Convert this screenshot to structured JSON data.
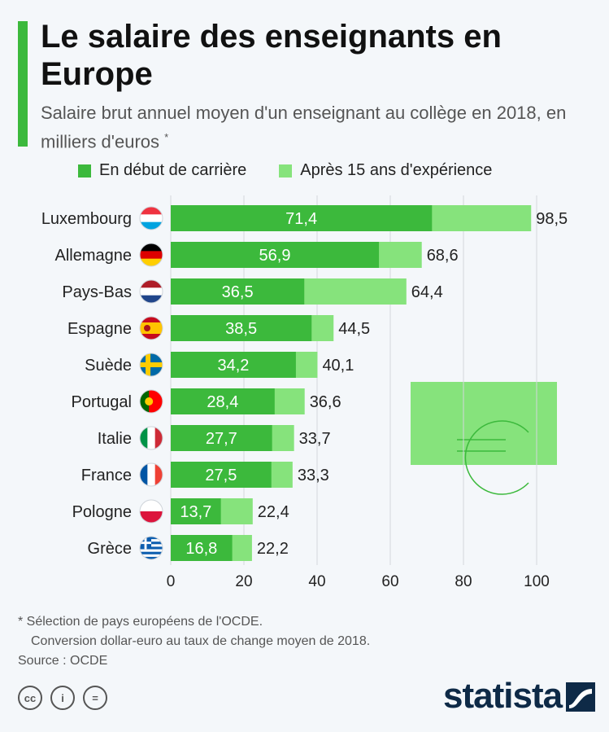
{
  "title": "Le salaire des enseignants en Europe",
  "subtitle": "Salaire brut annuel moyen d'un enseignant au collège en 2018, en milliers d'euros",
  "subtitle_mark": "*",
  "legend": [
    "En début de carrière",
    "Après 15 ans d'expérience"
  ],
  "colors": {
    "start": "#3cb93c",
    "after": "#86e37c",
    "accent": "#3cb93c",
    "brand": "#0e2a47"
  },
  "chart_data": {
    "type": "bar",
    "orientation": "horizontal",
    "categories": [
      "Luxembourg",
      "Allemagne",
      "Pays-Bas",
      "Espagne",
      "Suède",
      "Portugal",
      "Italie",
      "France",
      "Pologne",
      "Grèce"
    ],
    "series": [
      {
        "name": "En début de carrière",
        "values": [
          71.4,
          56.9,
          36.5,
          38.5,
          34.2,
          28.4,
          27.7,
          27.5,
          13.7,
          16.8
        ]
      },
      {
        "name": "Après 15 ans d'expérience",
        "values": [
          98.5,
          68.6,
          64.4,
          44.5,
          40.1,
          36.6,
          33.7,
          33.3,
          22.4,
          22.2
        ]
      }
    ],
    "start_labels": [
      "71,4",
      "56,9",
      "36,5",
      "38,5",
      "34,2",
      "28,4",
      "27,7",
      "27,5",
      "13,7",
      "16,8"
    ],
    "end_labels": [
      "98,5",
      "68,6",
      "64,4",
      "44,5",
      "40,1",
      "36,6",
      "33,7",
      "33,3",
      "22,4",
      "22,2"
    ],
    "xticks": [
      "0",
      "20",
      "40",
      "60",
      "80",
      "100"
    ],
    "xlim": [
      0,
      100
    ],
    "grid": true,
    "legend_position": "top",
    "flags": [
      "luxembourg-flag",
      "germany-flag",
      "netherlands-flag",
      "spain-flag",
      "sweden-flag",
      "portugal-flag",
      "italy-flag",
      "france-flag",
      "poland-flag",
      "greece-flag"
    ]
  },
  "footnote": {
    "line1": "* Sélection de pays européens de l'OCDE.",
    "line2": "Conversion dollar-euro au taux de change moyen de 2018.",
    "source": "Source : OCDE"
  },
  "license_icons": {
    "cc": "cc",
    "by": "i",
    "nd": "="
  },
  "brand": "statista"
}
